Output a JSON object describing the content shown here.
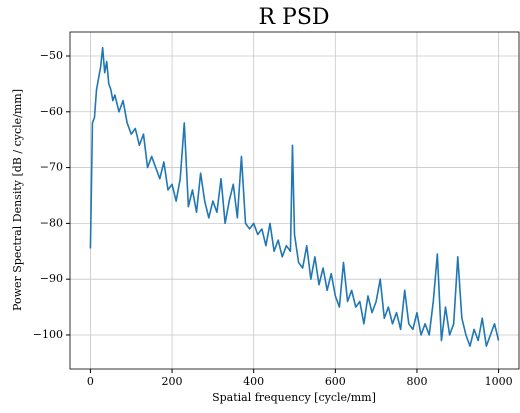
{
  "chart_data": {
    "type": "line",
    "title": "R PSD",
    "x_label": "Spatial frequency [cycle/mm]",
    "y_label": "Power Spectral Density [dB / cycle/mm]",
    "x": [
      0,
      5,
      10,
      15,
      20,
      25,
      30,
      35,
      40,
      45,
      50,
      55,
      60,
      70,
      80,
      90,
      100,
      110,
      120,
      130,
      140,
      150,
      160,
      170,
      180,
      190,
      200,
      210,
      220,
      230,
      240,
      250,
      260,
      270,
      280,
      290,
      300,
      310,
      320,
      330,
      340,
      350,
      360,
      370,
      380,
      390,
      400,
      410,
      420,
      430,
      440,
      450,
      460,
      470,
      480,
      490,
      495,
      500,
      510,
      520,
      530,
      540,
      550,
      560,
      570,
      580,
      590,
      600,
      610,
      620,
      630,
      640,
      650,
      660,
      670,
      680,
      690,
      700,
      710,
      720,
      730,
      740,
      750,
      760,
      770,
      780,
      790,
      800,
      810,
      820,
      830,
      840,
      850,
      860,
      870,
      880,
      890,
      900,
      910,
      920,
      930,
      940,
      950,
      960,
      970,
      980,
      990,
      1000
    ],
    "values": [
      -84.5,
      -62,
      -61,
      -56,
      -54,
      -52,
      -48.5,
      -53,
      -51,
      -55,
      -56,
      -58,
      -57,
      -60,
      -58,
      -62,
      -64,
      -63,
      -66,
      -64,
      -70,
      -68,
      -70,
      -72,
      -69,
      -74,
      -73,
      -76,
      -72,
      -62,
      -77,
      -74,
      -78,
      -71,
      -76,
      -79,
      -76,
      -78,
      -72,
      -80,
      -76,
      -73,
      -79,
      -68,
      -80,
      -81,
      -80,
      -82,
      -81,
      -84,
      -80,
      -85,
      -83,
      -86,
      -84,
      -85,
      -66,
      -82,
      -87,
      -88,
      -84,
      -90,
      -86,
      -91,
      -88,
      -92,
      -89,
      -93,
      -95,
      -87,
      -94,
      -92,
      -95,
      -94,
      -98,
      -93,
      -96,
      -94,
      -90,
      -97,
      -95,
      -98,
      -96,
      -99,
      -92,
      -98,
      -99,
      -96,
      -100,
      -98,
      -100,
      -94,
      -85.5,
      -101,
      -95,
      -100,
      -98,
      -86,
      -97,
      -100,
      -102,
      -99,
      -101,
      -97,
      -102,
      -100,
      -98,
      -101
    ],
    "color": "#1f77b4",
    "xlim": [
      -50,
      1050
    ],
    "ylim": [
      -106.1,
      -45.7
    ],
    "xticks": [
      0,
      200,
      400,
      600,
      800,
      1000
    ],
    "yticks": [
      {
        "value": -50,
        "label": "−50"
      },
      {
        "value": -60,
        "label": "−60"
      },
      {
        "value": -70,
        "label": "−70"
      },
      {
        "value": -80,
        "label": "−80"
      },
      {
        "value": -90,
        "label": "−90"
      },
      {
        "value": -100,
        "label": "−100"
      }
    ],
    "grid": true
  }
}
